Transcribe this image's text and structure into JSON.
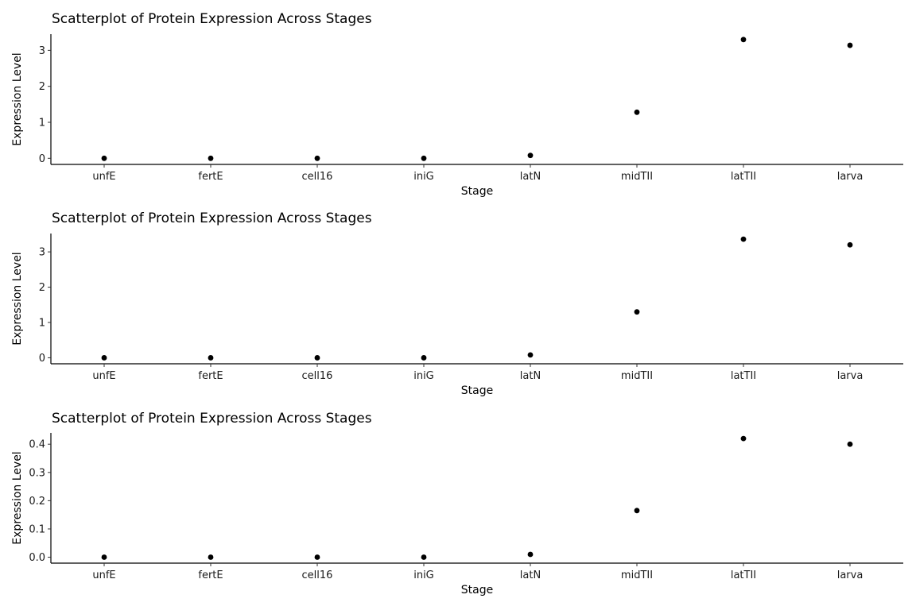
{
  "chart_data": [
    {
      "type": "scatter",
      "title": "Scatterplot of Protein Expression Across Stages",
      "xlabel": "Stage",
      "ylabel": "Expression Level",
      "categories": [
        "unfE",
        "fertE",
        "cell16",
        "iniG",
        "latN",
        "midTII",
        "latTII",
        "larva"
      ],
      "values": [
        0,
        0,
        0,
        0,
        0.08,
        1.28,
        3.3,
        3.14
      ],
      "ylim": [
        -0.17,
        3.45
      ],
      "yticks": [
        0,
        1,
        2,
        3
      ],
      "ytick_labels": [
        "0",
        "1",
        "2",
        "3"
      ],
      "grid": false,
      "legend": "none",
      "point_color": "#000000"
    },
    {
      "type": "scatter",
      "title": "Scatterplot of Protein Expression Across Stages",
      "xlabel": "Stage",
      "ylabel": "Expression Level",
      "categories": [
        "unfE",
        "fertE",
        "cell16",
        "iniG",
        "latN",
        "midTII",
        "latTII",
        "larva"
      ],
      "values": [
        0,
        0,
        0,
        0,
        0.08,
        1.3,
        3.36,
        3.2
      ],
      "ylim": [
        -0.17,
        3.52
      ],
      "yticks": [
        0,
        1,
        2,
        3
      ],
      "ytick_labels": [
        "0",
        "1",
        "2",
        "3"
      ],
      "grid": false,
      "legend": "none",
      "point_color": "#000000"
    },
    {
      "type": "scatter",
      "title": "Scatterplot of Protein Expression Across Stages",
      "xlabel": "Stage",
      "ylabel": "Expression Level",
      "categories": [
        "unfE",
        "fertE",
        "cell16",
        "iniG",
        "latN",
        "midTII",
        "latTII",
        "larva"
      ],
      "values": [
        0,
        0,
        0,
        0,
        0.01,
        0.165,
        0.42,
        0.4
      ],
      "ylim": [
        -0.021,
        0.44
      ],
      "yticks": [
        0,
        0.1,
        0.2,
        0.3,
        0.4
      ],
      "ytick_labels": [
        "0.0",
        "0.1",
        "0.2",
        "0.3",
        "0.4"
      ],
      "grid": false,
      "legend": "none",
      "point_color": "#000000"
    }
  ]
}
